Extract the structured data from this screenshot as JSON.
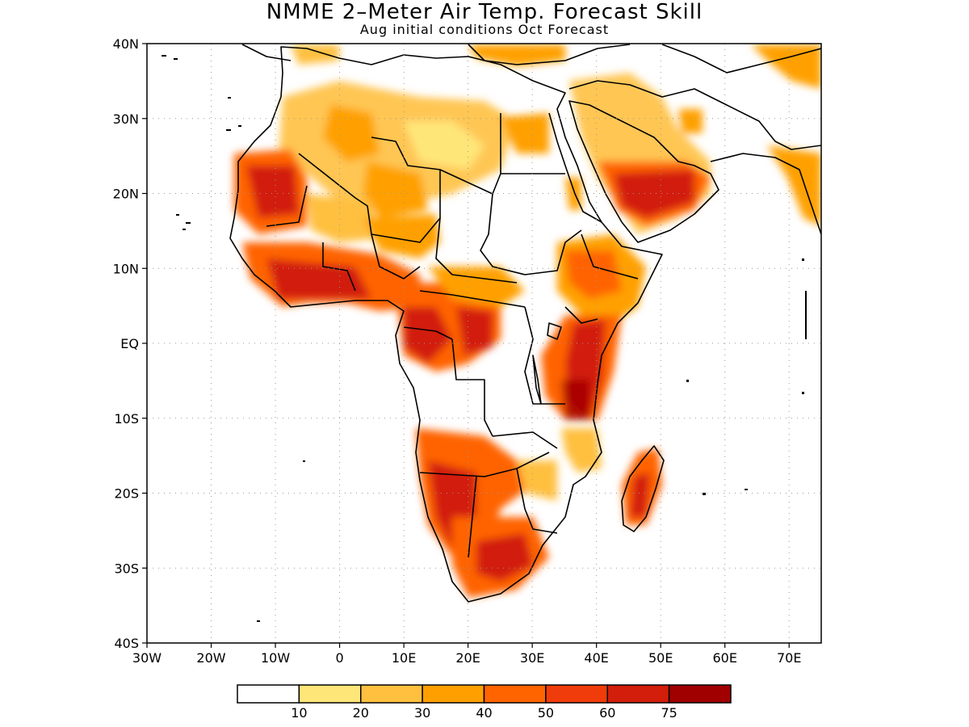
{
  "title": "NMME 2–Meter Air Temp. Forecast Skill",
  "subtitle": "Aug initial conditions   Oct Forecast",
  "map": {
    "lon_range": [
      -30,
      75
    ],
    "lat_range": [
      -40,
      40
    ],
    "lat_ticks": [
      {
        "lat": 40,
        "label": "40N"
      },
      {
        "lat": 30,
        "label": "30N"
      },
      {
        "lat": 20,
        "label": "20N"
      },
      {
        "lat": 10,
        "label": "10N"
      },
      {
        "lat": 0,
        "label": "EQ"
      },
      {
        "lat": -10,
        "label": "10S"
      },
      {
        "lat": -20,
        "label": "20S"
      },
      {
        "lat": -30,
        "label": "30S"
      },
      {
        "lat": -40,
        "label": "40S"
      }
    ],
    "lon_ticks": [
      {
        "lon": -30,
        "label": "30W"
      },
      {
        "lon": -20,
        "label": "20W"
      },
      {
        "lon": -10,
        "label": "10W"
      },
      {
        "lon": 0,
        "label": "0"
      },
      {
        "lon": 10,
        "label": "10E"
      },
      {
        "lon": 20,
        "label": "20E"
      },
      {
        "lon": 30,
        "label": "30E"
      },
      {
        "lon": 40,
        "label": "40E"
      },
      {
        "lon": 50,
        "label": "50E"
      },
      {
        "lon": 60,
        "label": "60E"
      },
      {
        "lon": 70,
        "label": "70E"
      }
    ],
    "grid": true
  },
  "colorbar": {
    "colors": [
      "#ffffff",
      "#ffe678",
      "#ffc040",
      "#ffa000",
      "#ff6400",
      "#f03c0a",
      "#d21e0a",
      "#a00000"
    ],
    "labels": [
      "10",
      "20",
      "30",
      "40",
      "50",
      "60",
      "75"
    ]
  }
}
